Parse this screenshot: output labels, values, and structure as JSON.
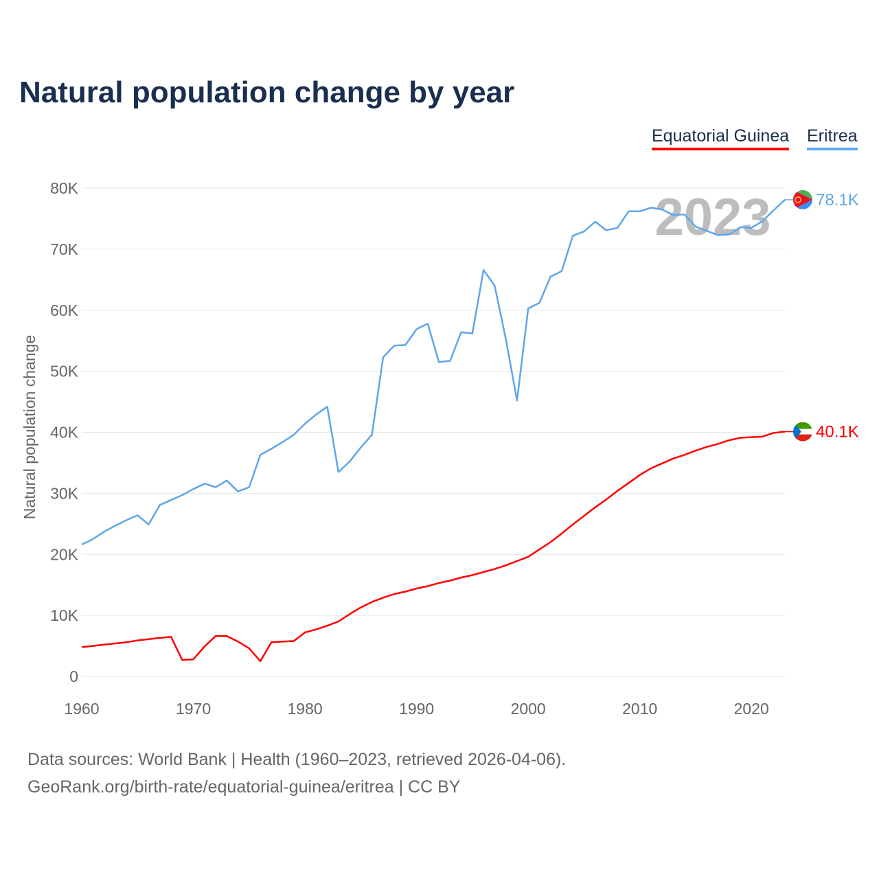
{
  "title": "Natural population change by year",
  "legend": [
    {
      "label": "Equatorial Guinea",
      "color": "#ff0000"
    },
    {
      "label": "Eritrea",
      "color": "#5ea6ea"
    }
  ],
  "footer": {
    "line1": "Data sources: World Bank | Health (1960–2023, retrieved 2026-04-06).",
    "line2": "GeoRank.org/birth-rate/equatorial-guinea/eritrea | CC BY"
  },
  "chart_data": {
    "type": "line",
    "title": "Natural population change by year",
    "xlabel": "",
    "ylabel": "Natural population change",
    "year_overlay": "2023",
    "xlim": [
      1960,
      2023
    ],
    "ylim": [
      0,
      80000
    ],
    "x_ticks": [
      1960,
      1970,
      1980,
      1990,
      2000,
      2010,
      2020
    ],
    "x_tick_labels": [
      "1960",
      "1970",
      "1980",
      "1990",
      "2000",
      "2010",
      "2020"
    ],
    "y_ticks": [
      0,
      10000,
      20000,
      30000,
      40000,
      50000,
      60000,
      70000,
      80000
    ],
    "y_tick_labels": [
      "0",
      "10K",
      "20K",
      "30K",
      "40K",
      "50K",
      "60K",
      "70K",
      "80K"
    ],
    "grid": true,
    "legend_position": "top-right",
    "x_start": 1960,
    "series": [
      {
        "name": "Equatorial Guinea",
        "color": "#ff0000",
        "end_label": "40.1K",
        "flag": "equatorial-guinea-flag",
        "values": [
          4800,
          5000,
          5200,
          5400,
          5600,
          5900,
          6100,
          6300,
          6500,
          2700,
          2800,
          4900,
          6600,
          6600,
          5700,
          4600,
          2500,
          5600,
          5700,
          5800,
          7200,
          7700,
          8300,
          9000,
          10200,
          11300,
          12200,
          12900,
          13500,
          13900,
          14400,
          14800,
          15300,
          15700,
          16200,
          16600,
          17100,
          17600,
          18200,
          18900,
          19600,
          20800,
          22000,
          23400,
          24900,
          26300,
          27700,
          29000,
          30400,
          31700,
          33000,
          34100,
          34900,
          35700,
          36300,
          37000,
          37600,
          38100,
          38700,
          39100,
          39200,
          39300,
          39900,
          40100
        ]
      },
      {
        "name": "Eritrea",
        "color": "#5ea6ea",
        "end_label": "78.1K",
        "flag": "eritrea-flag",
        "values": [
          21600,
          22500,
          23700,
          24700,
          25600,
          26400,
          24900,
          28100,
          28900,
          29700,
          30700,
          31600,
          31000,
          32100,
          30300,
          31000,
          36300,
          37300,
          38400,
          39600,
          41400,
          42900,
          44200,
          33500,
          35200,
          37500,
          39600,
          52300,
          54200,
          54300,
          56900,
          57800,
          51500,
          51700,
          56400,
          56200,
          66600,
          64000,
          55200,
          45200,
          60300,
          61200,
          65500,
          66400,
          72200,
          72900,
          74500,
          73100,
          73500,
          76200,
          76200,
          76800,
          76500,
          75600,
          75700,
          73700,
          73000,
          72300,
          72400,
          73600,
          73500,
          74600,
          76400,
          78100
        ]
      }
    ]
  }
}
